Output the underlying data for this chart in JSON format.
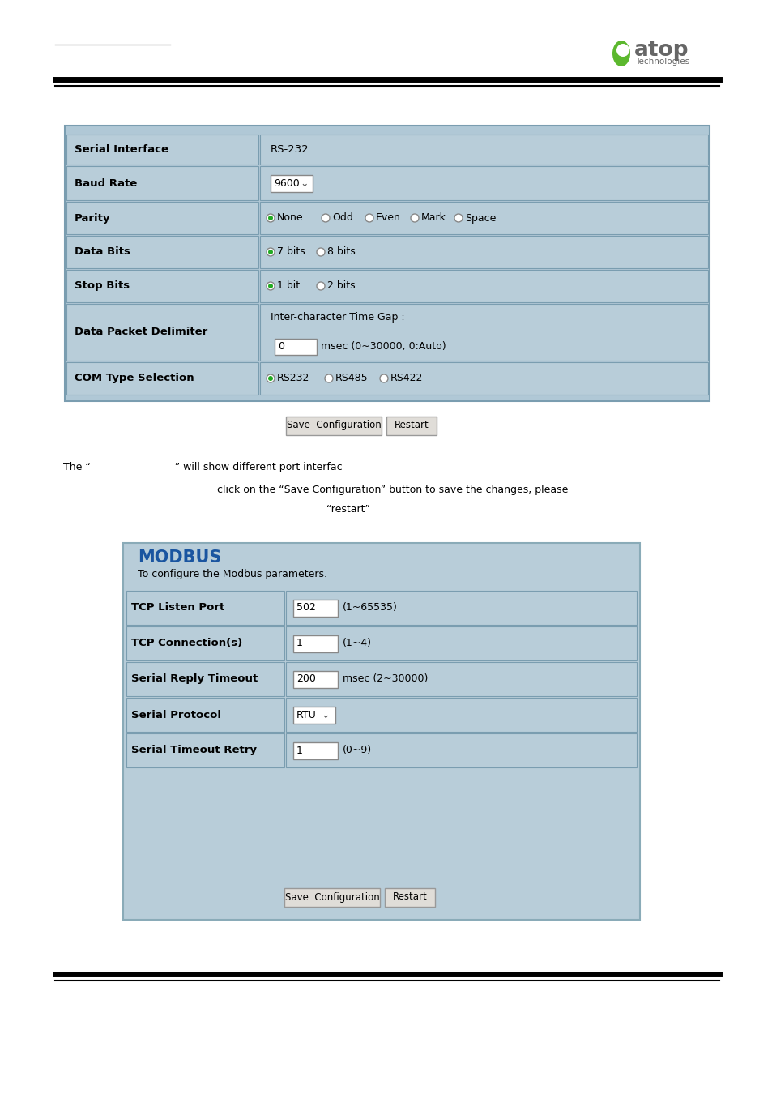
{
  "bg_color": "#ffffff",
  "table_bg": "#b0c8d6",
  "table_border": "#7a9db0",
  "row_bg": "#b8cdd9",
  "radio_green": "#22aa22",
  "modbus_blue": "#1a55a0",
  "modbus_bg": "#b8cdd9",
  "button_bg": "#e0ddd8",
  "button_border": "#999999",
  "logo_green": "#5cb82e",
  "logo_gray": "#666666",
  "com1_rows": [
    {
      "label": "Serial Interface",
      "value": "RS-232",
      "type": "text"
    },
    {
      "label": "Baud Rate",
      "value": "9600",
      "type": "dropdown"
    },
    {
      "label": "Parity",
      "type": "parity",
      "options": [
        "None",
        "Odd",
        "Even",
        "Mark",
        "Space"
      ]
    },
    {
      "label": "Data Bits",
      "type": "databits",
      "options": [
        "7 bits",
        "8 bits"
      ]
    },
    {
      "label": "Stop Bits",
      "type": "stopbits",
      "options": [
        "1 bit",
        "2 bits"
      ]
    },
    {
      "label": "Data Packet Delimiter",
      "type": "delimiter"
    },
    {
      "label": "COM Type Selection",
      "type": "comtype",
      "options": [
        "RS232",
        "RS485",
        "RS422"
      ]
    }
  ],
  "modbus_rows": [
    {
      "label": "TCP Listen Port",
      "value": "502",
      "hint": "(1~65535)",
      "type": "input"
    },
    {
      "label": "TCP Connection(s)",
      "value": "1",
      "hint": "(1~4)",
      "type": "input"
    },
    {
      "label": "Serial Reply Timeout",
      "value": "200",
      "hint": "msec (2~30000)",
      "type": "input"
    },
    {
      "label": "Serial Protocol",
      "value": "RTU",
      "hint": "",
      "type": "dropdown"
    },
    {
      "label": "Serial Timeout Retry",
      "value": "1",
      "hint": "(0~9)",
      "type": "input"
    }
  ]
}
